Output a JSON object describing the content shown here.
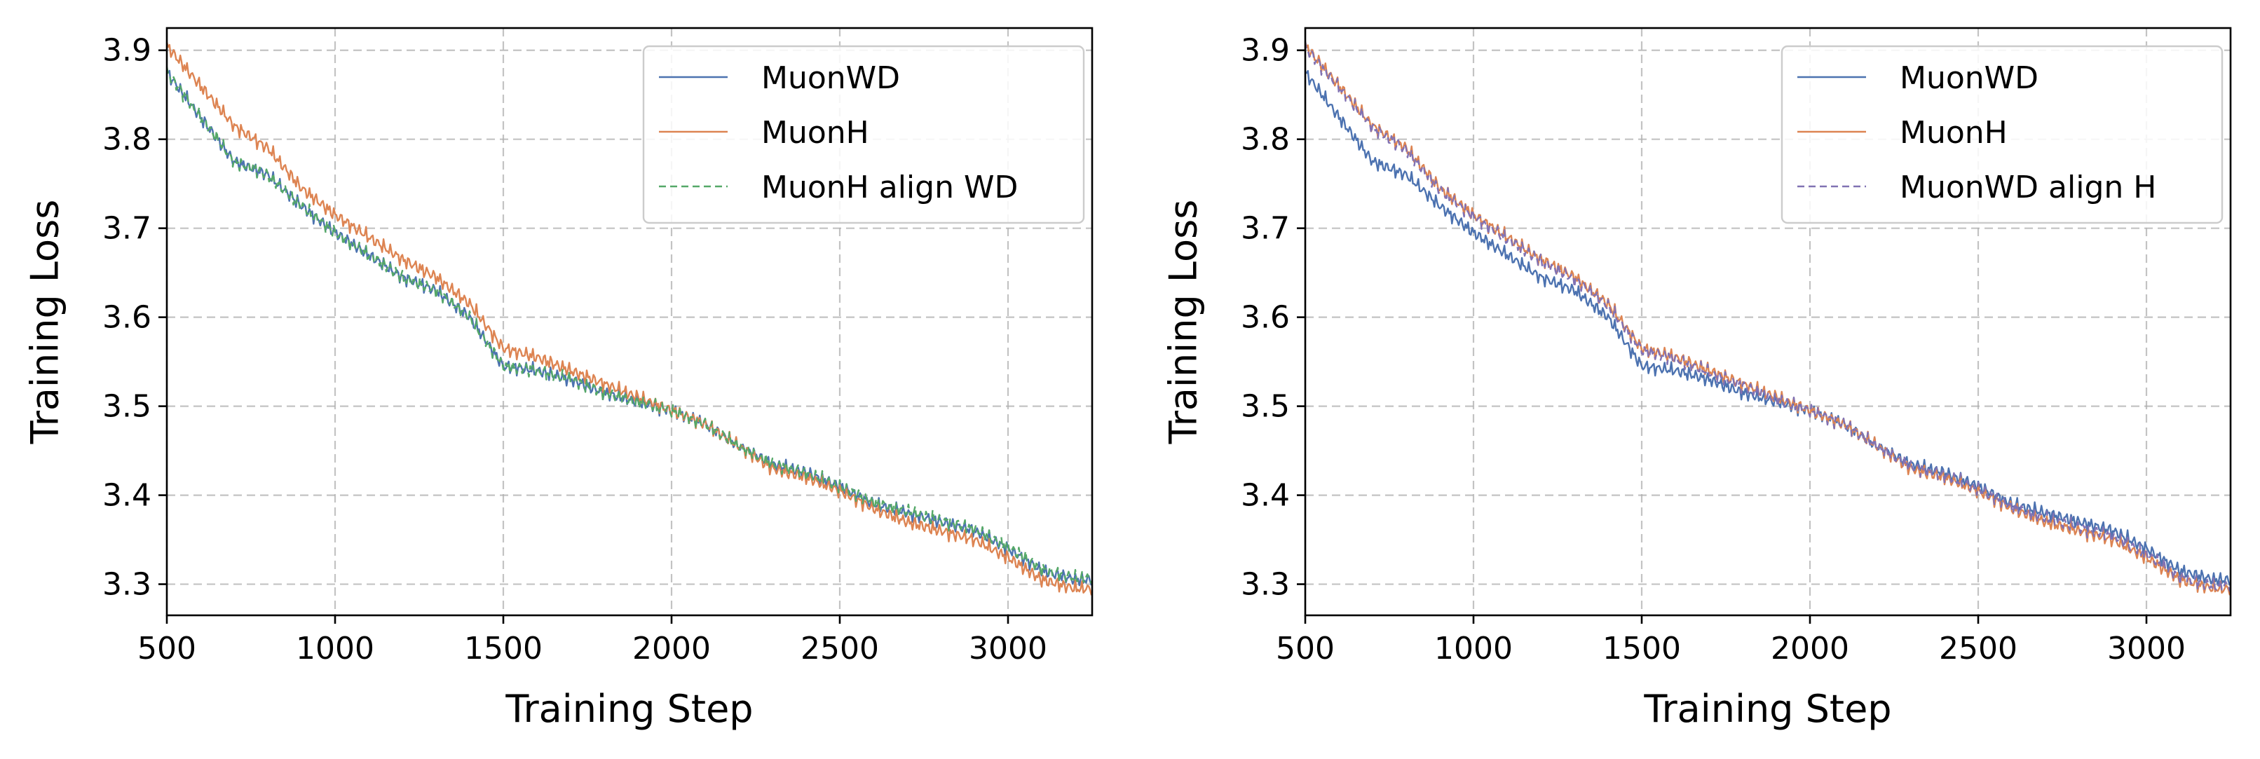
{
  "chart_data": [
    {
      "type": "line",
      "xlabel": "Training Step",
      "ylabel": "Training Loss",
      "xlim": [
        500,
        3250
      ],
      "ylim": [
        3.265,
        3.925
      ],
      "xticks": [
        500,
        1000,
        1500,
        2000,
        2500,
        3000
      ],
      "yticks": [
        3.3,
        3.4,
        3.5,
        3.6,
        3.7,
        3.8,
        3.9
      ],
      "grid": true,
      "legend_position": "top-right",
      "series": [
        {
          "name": "MuonWD",
          "color": "#4c72b0",
          "dash": "solid",
          "points": [
            [
              500,
              3.875
            ],
            [
              600,
              3.825
            ],
            [
              700,
              3.775
            ],
            [
              800,
              3.76
            ],
            [
              900,
              3.725
            ],
            [
              1000,
              3.695
            ],
            [
              1100,
              3.67
            ],
            [
              1200,
              3.645
            ],
            [
              1300,
              3.63
            ],
            [
              1400,
              3.6
            ],
            [
              1500,
              3.545
            ],
            [
              1600,
              3.54
            ],
            [
              1700,
              3.53
            ],
            [
              1800,
              3.515
            ],
            [
              1900,
              3.505
            ],
            [
              2000,
              3.495
            ],
            [
              2100,
              3.48
            ],
            [
              2200,
              3.455
            ],
            [
              2300,
              3.435
            ],
            [
              2400,
              3.425
            ],
            [
              2500,
              3.41
            ],
            [
              2600,
              3.39
            ],
            [
              2700,
              3.38
            ],
            [
              2800,
              3.37
            ],
            [
              2900,
              3.36
            ],
            [
              3000,
              3.34
            ],
            [
              3100,
              3.315
            ],
            [
              3200,
              3.305
            ],
            [
              3250,
              3.305
            ]
          ]
        },
        {
          "name": "MuonH",
          "color": "#dd8452",
          "dash": "solid",
          "points": [
            [
              500,
              3.905
            ],
            [
              600,
              3.86
            ],
            [
              700,
              3.815
            ],
            [
              800,
              3.79
            ],
            [
              900,
              3.745
            ],
            [
              1000,
              3.715
            ],
            [
              1100,
              3.69
            ],
            [
              1200,
              3.665
            ],
            [
              1300,
              3.645
            ],
            [
              1400,
              3.615
            ],
            [
              1500,
              3.565
            ],
            [
              1600,
              3.555
            ],
            [
              1700,
              3.54
            ],
            [
              1800,
              3.525
            ],
            [
              1900,
              3.51
            ],
            [
              2000,
              3.495
            ],
            [
              2100,
              3.48
            ],
            [
              2200,
              3.455
            ],
            [
              2300,
              3.43
            ],
            [
              2400,
              3.42
            ],
            [
              2500,
              3.405
            ],
            [
              2600,
              3.385
            ],
            [
              2700,
              3.37
            ],
            [
              2800,
              3.36
            ],
            [
              2900,
              3.35
            ],
            [
              3000,
              3.33
            ],
            [
              3100,
              3.305
            ],
            [
              3200,
              3.295
            ],
            [
              3250,
              3.295
            ]
          ]
        },
        {
          "name": "MuonH align WD",
          "color": "#55a868",
          "dash": "dashed",
          "points": [
            [
              500,
              3.875
            ],
            [
              600,
              3.825
            ],
            [
              700,
              3.775
            ],
            [
              800,
              3.76
            ],
            [
              900,
              3.725
            ],
            [
              1000,
              3.695
            ],
            [
              1100,
              3.67
            ],
            [
              1200,
              3.645
            ],
            [
              1300,
              3.63
            ],
            [
              1400,
              3.6
            ],
            [
              1500,
              3.545
            ],
            [
              1600,
              3.54
            ],
            [
              1700,
              3.53
            ],
            [
              1800,
              3.515
            ],
            [
              1900,
              3.505
            ],
            [
              2000,
              3.495
            ],
            [
              2100,
              3.48
            ],
            [
              2200,
              3.455
            ],
            [
              2300,
              3.435
            ],
            [
              2400,
              3.425
            ],
            [
              2500,
              3.41
            ],
            [
              2600,
              3.392
            ],
            [
              2700,
              3.382
            ],
            [
              2800,
              3.372
            ],
            [
              2900,
              3.362
            ],
            [
              3000,
              3.342
            ],
            [
              3100,
              3.317
            ],
            [
              3200,
              3.307
            ],
            [
              3250,
              3.307
            ]
          ]
        }
      ]
    },
    {
      "type": "line",
      "xlabel": "Training Step",
      "ylabel": "Training Loss",
      "xlim": [
        500,
        3250
      ],
      "ylim": [
        3.265,
        3.925
      ],
      "xticks": [
        500,
        1000,
        1500,
        2000,
        2500,
        3000
      ],
      "yticks": [
        3.3,
        3.4,
        3.5,
        3.6,
        3.7,
        3.8,
        3.9
      ],
      "grid": true,
      "legend_position": "top-right",
      "series": [
        {
          "name": "MuonWD",
          "color": "#4c72b0",
          "dash": "solid",
          "points": [
            [
              500,
              3.875
            ],
            [
              600,
              3.825
            ],
            [
              700,
              3.775
            ],
            [
              800,
              3.76
            ],
            [
              900,
              3.725
            ],
            [
              1000,
              3.695
            ],
            [
              1100,
              3.67
            ],
            [
              1200,
              3.645
            ],
            [
              1300,
              3.63
            ],
            [
              1400,
              3.6
            ],
            [
              1500,
              3.545
            ],
            [
              1600,
              3.54
            ],
            [
              1700,
              3.53
            ],
            [
              1800,
              3.515
            ],
            [
              1900,
              3.505
            ],
            [
              2000,
              3.495
            ],
            [
              2100,
              3.48
            ],
            [
              2200,
              3.455
            ],
            [
              2300,
              3.435
            ],
            [
              2400,
              3.425
            ],
            [
              2500,
              3.41
            ],
            [
              2600,
              3.39
            ],
            [
              2700,
              3.38
            ],
            [
              2800,
              3.37
            ],
            [
              2900,
              3.36
            ],
            [
              3000,
              3.34
            ],
            [
              3100,
              3.315
            ],
            [
              3200,
              3.305
            ],
            [
              3250,
              3.305
            ]
          ]
        },
        {
          "name": "MuonH",
          "color": "#dd8452",
          "dash": "solid",
          "points": [
            [
              500,
              3.905
            ],
            [
              600,
              3.86
            ],
            [
              700,
              3.815
            ],
            [
              800,
              3.79
            ],
            [
              900,
              3.745
            ],
            [
              1000,
              3.715
            ],
            [
              1100,
              3.69
            ],
            [
              1200,
              3.665
            ],
            [
              1300,
              3.645
            ],
            [
              1400,
              3.615
            ],
            [
              1500,
              3.565
            ],
            [
              1600,
              3.555
            ],
            [
              1700,
              3.54
            ],
            [
              1800,
              3.525
            ],
            [
              1900,
              3.51
            ],
            [
              2000,
              3.495
            ],
            [
              2100,
              3.48
            ],
            [
              2200,
              3.455
            ],
            [
              2300,
              3.43
            ],
            [
              2400,
              3.42
            ],
            [
              2500,
              3.405
            ],
            [
              2600,
              3.385
            ],
            [
              2700,
              3.37
            ],
            [
              2800,
              3.36
            ],
            [
              2900,
              3.35
            ],
            [
              3000,
              3.33
            ],
            [
              3100,
              3.305
            ],
            [
              3200,
              3.295
            ],
            [
              3250,
              3.295
            ]
          ]
        },
        {
          "name": "MuonWD align H",
          "color": "#8172b3",
          "dash": "dashed",
          "points": [
            [
              500,
              3.903
            ],
            [
              600,
              3.858
            ],
            [
              700,
              3.813
            ],
            [
              800,
              3.788
            ],
            [
              900,
              3.743
            ],
            [
              1000,
              3.713
            ],
            [
              1100,
              3.688
            ],
            [
              1200,
              3.663
            ],
            [
              1300,
              3.643
            ],
            [
              1400,
              3.613
            ],
            [
              1500,
              3.563
            ],
            [
              1600,
              3.553
            ],
            [
              1700,
              3.538
            ],
            [
              1800,
              3.523
            ],
            [
              1900,
              3.508
            ],
            [
              2000,
              3.495
            ],
            [
              2100,
              3.48
            ],
            [
              2200,
              3.455
            ],
            [
              2300,
              3.432
            ],
            [
              2400,
              3.422
            ],
            [
              2500,
              3.407
            ],
            [
              2600,
              3.387
            ],
            [
              2700,
              3.374
            ],
            [
              2800,
              3.364
            ],
            [
              2900,
              3.354
            ],
            [
              3000,
              3.334
            ],
            [
              3100,
              3.308
            ],
            [
              3200,
              3.298
            ],
            [
              3250,
              3.298
            ]
          ]
        }
      ]
    }
  ]
}
